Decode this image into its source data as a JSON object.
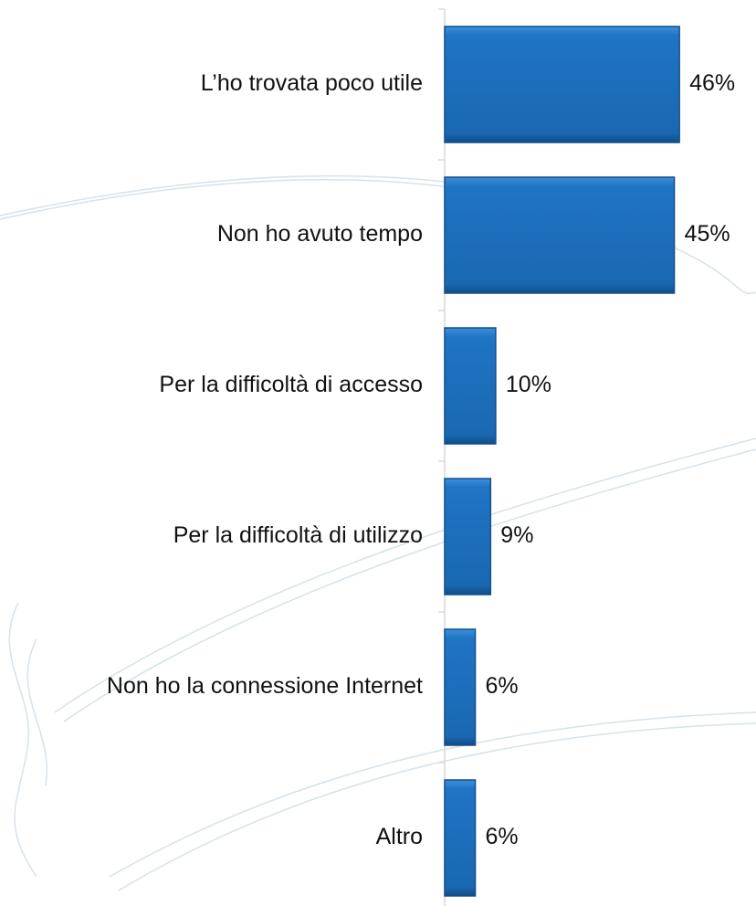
{
  "chart_data": {
    "type": "bar",
    "orientation": "horizontal",
    "categories": [
      "L’ho trovata poco utile",
      "Non ho avuto tempo",
      "Per la difficoltà di accesso",
      "Per la difficoltà di utilizzo",
      "Non ho la connessione Internet",
      "Altro"
    ],
    "values": [
      46,
      45,
      10,
      9,
      6,
      6
    ],
    "value_labels": [
      "46%",
      "45%",
      "10%",
      "9%",
      "6%",
      "6%"
    ],
    "color": "#1f74c4"
  }
}
